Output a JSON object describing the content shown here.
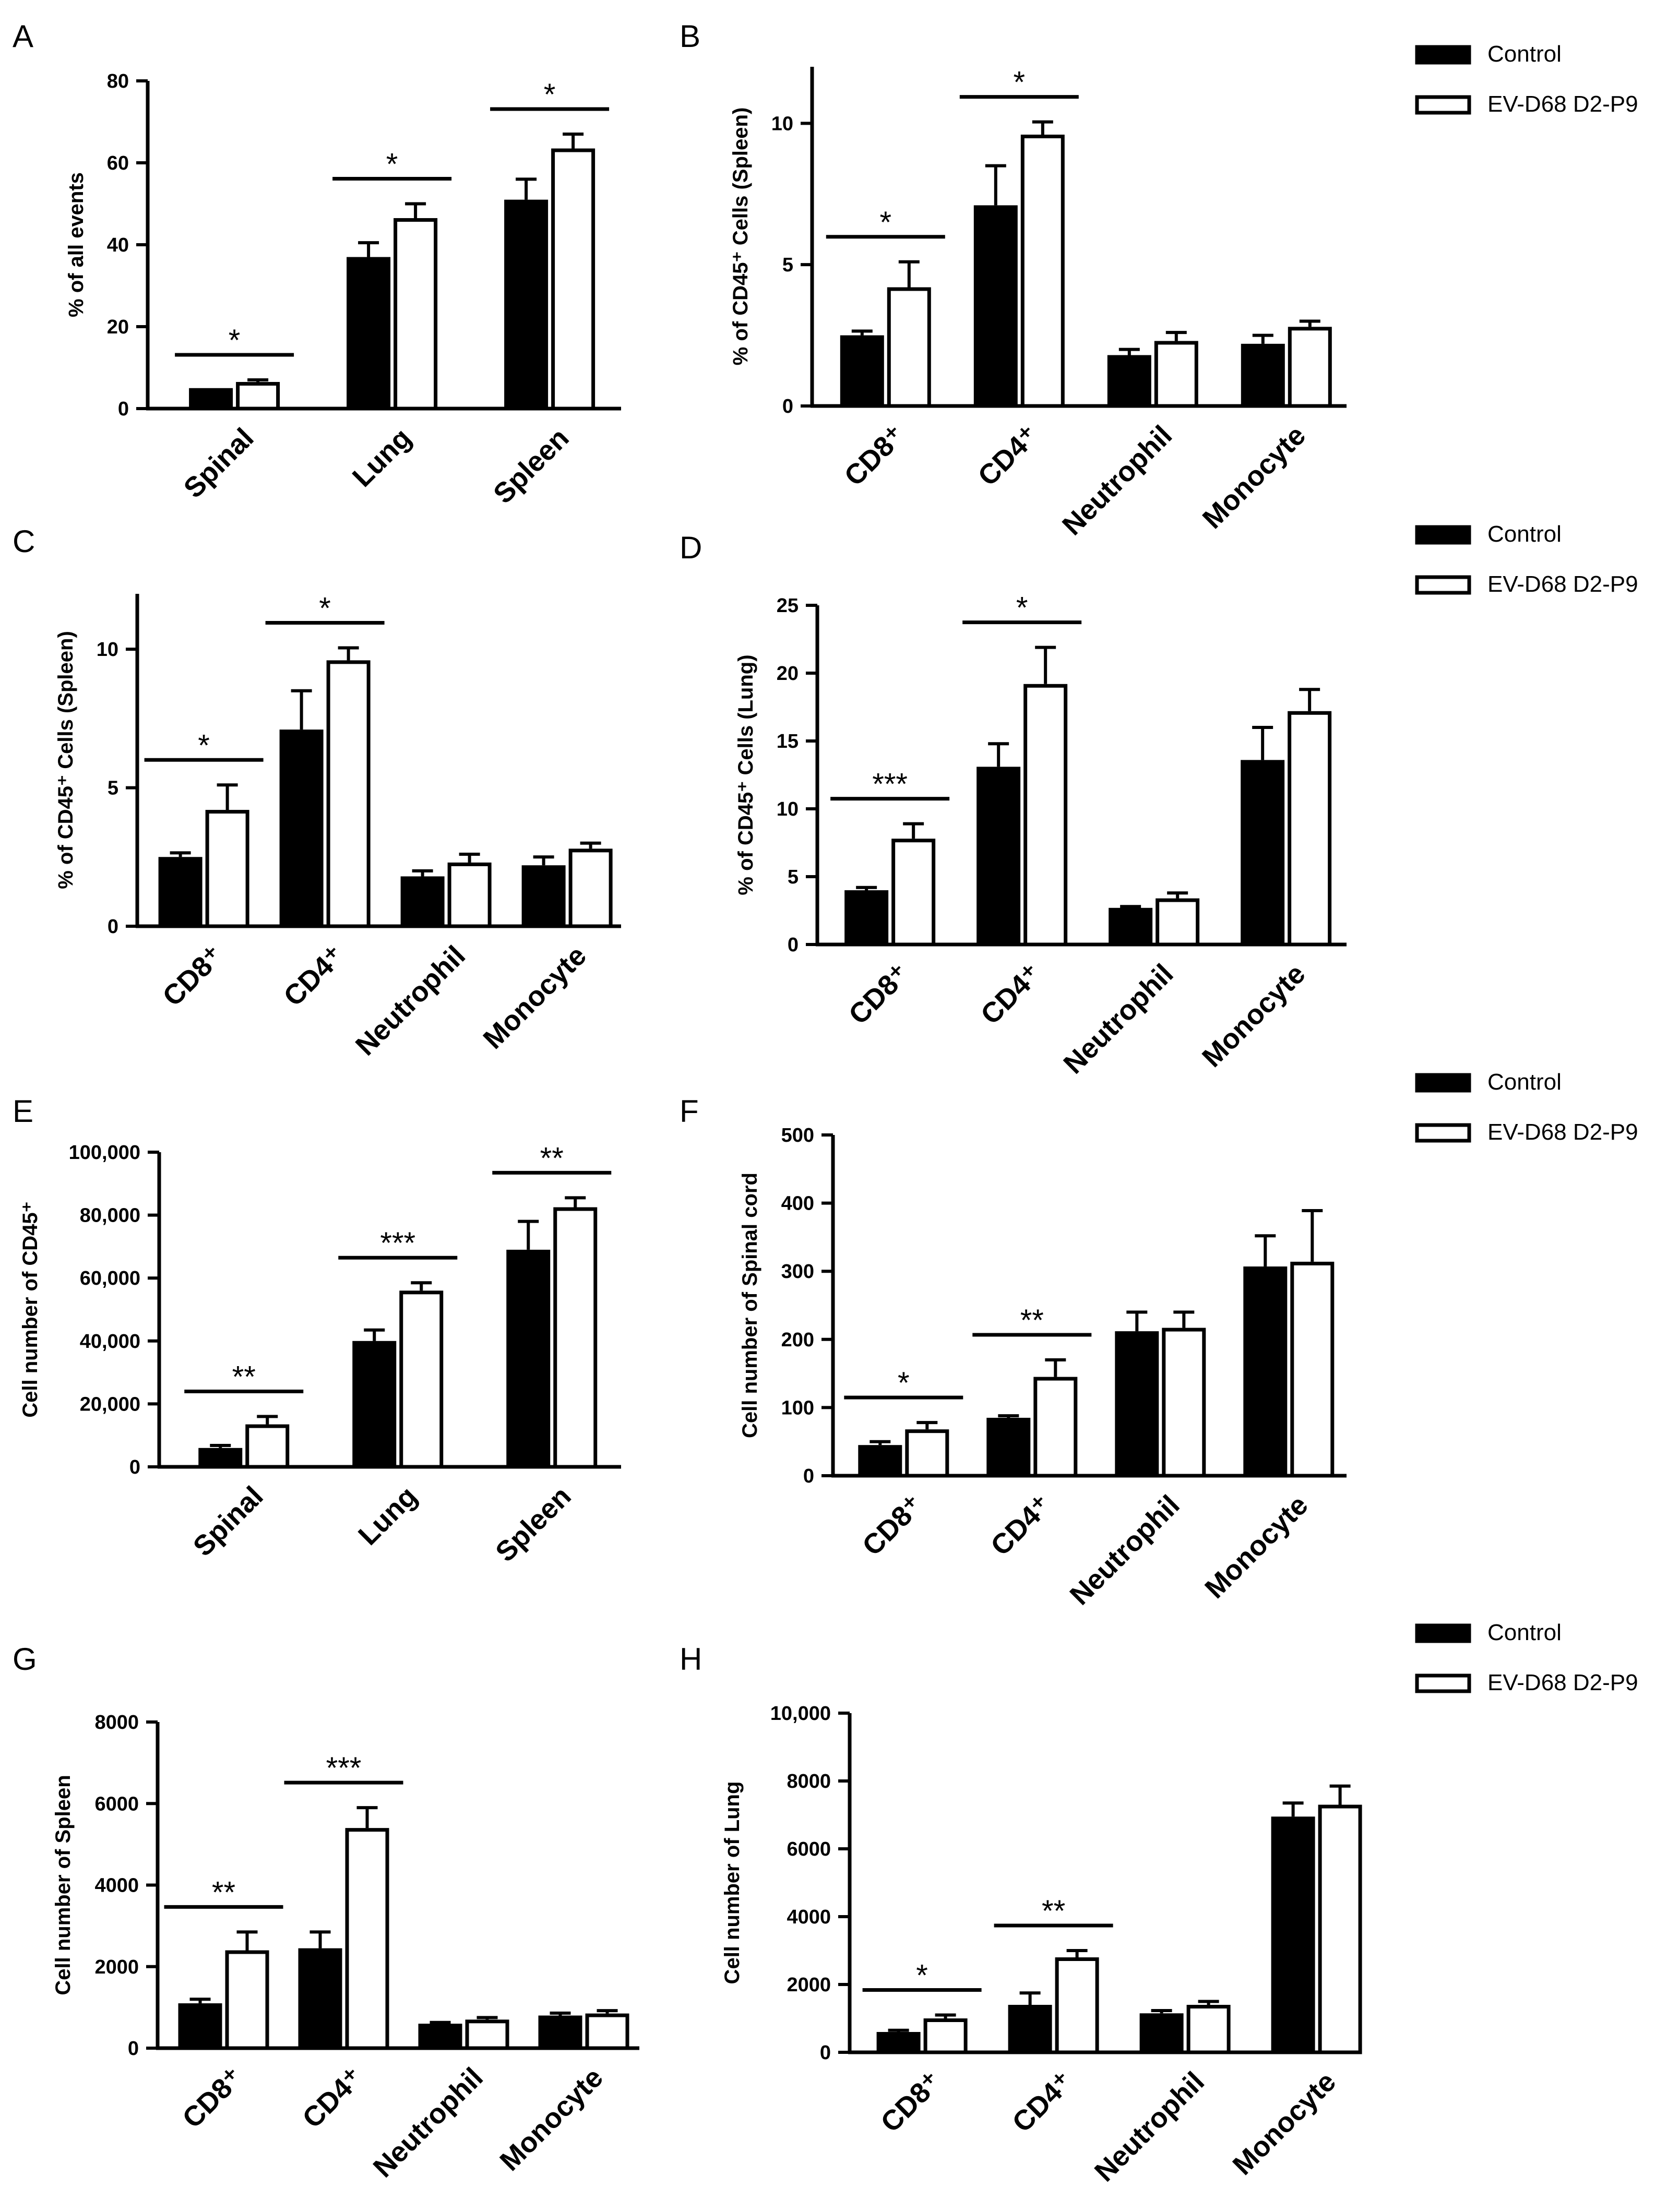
{
  "legend": {
    "entries": [
      {
        "label": "Control",
        "fill": "#000000"
      },
      {
        "label": "EV-D68 D2-P9",
        "fill": "#ffffff"
      }
    ]
  },
  "colors": {
    "control": "#000000",
    "infected": "#ffffff",
    "stroke": "#000000"
  },
  "chart_data": [
    {
      "panel": "A",
      "type": "bar",
      "ylabel": "% of all events",
      "ylim": [
        0,
        80
      ],
      "ticks": [
        0,
        20,
        40,
        60,
        80
      ],
      "tick_labels": [
        "0",
        "20",
        "40",
        "60",
        "80"
      ],
      "categories": [
        "Spinal",
        "Lung",
        "Spleen"
      ],
      "series": [
        {
          "name": "Control",
          "values": [
            5,
            37,
            51
          ],
          "errors": [
            0,
            3.5,
            5
          ]
        },
        {
          "name": "EV-D68 D2-P9",
          "values": [
            6.5,
            46.5,
            63.5
          ],
          "errors": [
            0.5,
            3.5,
            3.5
          ]
        }
      ],
      "significance": [
        "*",
        "*",
        "*"
      ]
    },
    {
      "panel": "B",
      "type": "bar",
      "ylabel": "% of CD45⁺ Cells (Spleen)",
      "ylim": [
        0,
        12
      ],
      "ticks": [
        0,
        5,
        10
      ],
      "tick_labels": [
        "0",
        "5",
        "10"
      ],
      "categories": [
        "CD8⁺",
        "CD4⁺",
        "Neutrophil",
        "Monocyte"
      ],
      "series": [
        {
          "name": "Control",
          "values": [
            2.5,
            7.1,
            1.8,
            2.2
          ],
          "errors": [
            0.15,
            1.4,
            0.2,
            0.3
          ]
        },
        {
          "name": "EV-D68 D2-P9",
          "values": [
            4.2,
            9.6,
            2.3,
            2.8
          ],
          "errors": [
            0.9,
            0.45,
            0.3,
            0.2
          ]
        }
      ],
      "significance": [
        "*",
        "*",
        "",
        ""
      ]
    },
    {
      "panel": "C",
      "type": "bar",
      "ylabel": "% of CD45⁺ Cells (Spleen)",
      "ylim": [
        0,
        12
      ],
      "ticks": [
        0,
        5,
        10
      ],
      "tick_labels": [
        "0",
        "5",
        "10"
      ],
      "categories": [
        "CD8⁺",
        "CD4⁺",
        "Neutrophil",
        "Monocyte"
      ],
      "series": [
        {
          "name": "Control",
          "values": [
            2.5,
            7.1,
            1.8,
            2.2
          ],
          "errors": [
            0.15,
            1.4,
            0.2,
            0.3
          ]
        },
        {
          "name": "EV-D68 D2-P9",
          "values": [
            4.2,
            9.6,
            2.3,
            2.8
          ],
          "errors": [
            0.9,
            0.45,
            0.3,
            0.2
          ]
        }
      ],
      "significance": [
        "*",
        "*",
        "",
        ""
      ]
    },
    {
      "panel": "D",
      "type": "bar",
      "ylabel": "% of CD45⁺ Cells (Lung)",
      "ylim": [
        0,
        25
      ],
      "ticks": [
        0,
        5,
        10,
        15,
        20,
        25
      ],
      "tick_labels": [
        "0",
        "5",
        "10",
        "15",
        "20",
        "25"
      ],
      "categories": [
        "CD8⁺",
        "CD4⁺",
        "Neutrophil",
        "Monocyte"
      ],
      "series": [
        {
          "name": "Control",
          "values": [
            4,
            13.1,
            2.7,
            13.6
          ],
          "errors": [
            0.2,
            1.7,
            0.1,
            2.4
          ]
        },
        {
          "name": "EV-D68 D2-P9",
          "values": [
            7.8,
            19.2,
            3.4,
            17.2
          ],
          "errors": [
            1.1,
            2.7,
            0.4,
            1.6
          ]
        }
      ],
      "significance": [
        "***",
        "*",
        "",
        ""
      ]
    },
    {
      "panel": "E",
      "type": "bar",
      "ylabel": "Cell number of CD45⁺",
      "ylim": [
        0,
        100000
      ],
      "ticks": [
        0,
        20000,
        40000,
        60000,
        80000,
        100000
      ],
      "tick_labels": [
        "0",
        "20,000",
        "40,000",
        "60,000",
        "80,000",
        "100,000"
      ],
      "categories": [
        "Spinal",
        "Lung",
        "Spleen"
      ],
      "series": [
        {
          "name": "Control",
          "values": [
            6000,
            40000,
            69000
          ],
          "errors": [
            800,
            3500,
            9000
          ]
        },
        {
          "name": "EV-D68 D2-P9",
          "values": [
            13500,
            56000,
            82500
          ],
          "errors": [
            2500,
            2500,
            3000
          ]
        }
      ],
      "significance": [
        "**",
        "***",
        "**"
      ]
    },
    {
      "panel": "F",
      "type": "bar",
      "ylabel": "Cell number of Spinal cord",
      "ylim": [
        0,
        500
      ],
      "ticks": [
        0,
        100,
        200,
        300,
        400,
        500
      ],
      "tick_labels": [
        "0",
        "100",
        "200",
        "300",
        "400",
        "500"
      ],
      "categories": [
        "CD8⁺",
        "CD4⁺",
        "Neutrophil",
        "Monocyte"
      ],
      "series": [
        {
          "name": "Control",
          "values": [
            45,
            85,
            212,
            307
          ],
          "errors": [
            5,
            3,
            28,
            45
          ]
        },
        {
          "name": "EV-D68 D2-P9",
          "values": [
            68,
            145,
            217,
            314
          ],
          "errors": [
            10,
            25,
            23,
            75
          ]
        }
      ],
      "significance": [
        "*",
        "**",
        "",
        ""
      ]
    },
    {
      "panel": "G",
      "type": "bar",
      "ylabel": "Cell number of Spleen",
      "ylim": [
        0,
        8000
      ],
      "ticks": [
        0,
        2000,
        4000,
        6000,
        8000
      ],
      "tick_labels": [
        "0",
        "2000",
        "4000",
        "6000",
        "8000"
      ],
      "categories": [
        "CD8⁺",
        "CD4⁺",
        "Neutrophil",
        "Monocyte"
      ],
      "series": [
        {
          "name": "Control",
          "values": [
            1100,
            2450,
            600,
            800
          ],
          "errors": [
            100,
            400,
            30,
            60
          ]
        },
        {
          "name": "EV-D68 D2-P9",
          "values": [
            2400,
            5400,
            700,
            850
          ],
          "errors": [
            450,
            500,
            50,
            70
          ]
        }
      ],
      "significance": [
        "**",
        "***",
        "",
        ""
      ]
    },
    {
      "panel": "H",
      "type": "bar",
      "ylabel": "Cell number of Lung",
      "ylim": [
        0,
        10000
      ],
      "ticks": [
        0,
        2000,
        4000,
        6000,
        8000,
        10000
      ],
      "tick_labels": [
        "0",
        "2000",
        "4000",
        "6000",
        "8000",
        "10,000"
      ],
      "categories": [
        "CD8⁺",
        "CD4⁺",
        "Neutrophil",
        "Monocyte"
      ],
      "series": [
        {
          "name": "Control",
          "values": [
            600,
            1400,
            1150,
            6950
          ],
          "errors": [
            50,
            350,
            80,
            400
          ]
        },
        {
          "name": "EV-D68 D2-P9",
          "values": [
            1000,
            2800,
            1400,
            7300
          ],
          "errors": [
            100,
            200,
            100,
            550
          ]
        }
      ],
      "significance": [
        "*",
        "**",
        "",
        ""
      ]
    }
  ]
}
